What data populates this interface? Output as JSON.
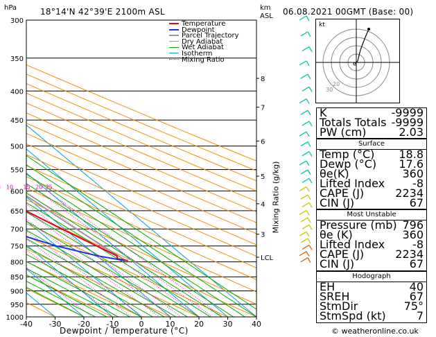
{
  "header": {
    "location": "18°14'N  42°39'E  2100m  ASL",
    "datetime": "06.08.2021  00GMT  (Base: 00)",
    "hpa_label": "hPa",
    "km_label": "km",
    "asl_label": "ASL"
  },
  "chart_data": {
    "type": "skew-t",
    "xlabel": "Dewpoint / Temperature (°C)",
    "ylabel_right": "Mixing Ratio (g/kg)",
    "x_ticks": [
      -40,
      -30,
      -20,
      -10,
      0,
      10,
      20,
      30,
      40
    ],
    "pressure_ticks": [
      300,
      350,
      400,
      450,
      500,
      550,
      600,
      650,
      700,
      750,
      800,
      850,
      900,
      950,
      1000
    ],
    "km_ticks": [
      {
        "label": "8",
        "p": 380
      },
      {
        "label": "7",
        "p": 427
      },
      {
        "label": "6",
        "p": 490
      },
      {
        "label": "5",
        "p": 565
      },
      {
        "label": "4",
        "p": 632
      },
      {
        "label": "3",
        "p": 715
      },
      {
        "label": "LCL",
        "p": 785
      }
    ],
    "mixing_ratio_labels": [
      "1",
      "2",
      "3",
      "4",
      "6",
      "8",
      "10",
      "15",
      "20",
      "25"
    ],
    "legend": [
      "Temperature",
      "Dewpoint",
      "Parcel Trajectory",
      "Dry Adiabat",
      "Wet Adiabat",
      "Isotherm",
      "Mixing Ratio"
    ],
    "colors": {
      "temperature": "#e8001c",
      "dewpoint": "#1a32f0",
      "parcel": "#999999",
      "dry_adiabat": "#f09000",
      "wet_adiabat": "#00b000",
      "isotherm": "#00a0e8",
      "mixing_ratio": "#e000c0"
    },
    "temperature": [
      {
        "p": 370,
        "t": -6
      },
      {
        "p": 380,
        "t": -8
      },
      {
        "p": 400,
        "t": -8
      },
      {
        "p": 450,
        "t": -12
      },
      {
        "p": 470,
        "t": -11
      },
      {
        "p": 500,
        "t": -10
      },
      {
        "p": 550,
        "t": -6
      },
      {
        "p": 600,
        "t": -2
      },
      {
        "p": 650,
        "t": 4
      },
      {
        "p": 700,
        "t": 9
      },
      {
        "p": 750,
        "t": 14
      },
      {
        "p": 780,
        "t": 17
      },
      {
        "p": 790,
        "t": 16
      },
      {
        "p": 796,
        "t": 18.8
      }
    ],
    "dewpoint": [
      {
        "p": 300,
        "t": -50
      },
      {
        "p": 340,
        "t": -38
      },
      {
        "p": 360,
        "t": -50
      },
      {
        "p": 370,
        "t": -39
      },
      {
        "p": 400,
        "t": -32
      },
      {
        "p": 445,
        "t": -24
      },
      {
        "p": 450,
        "t": -24
      },
      {
        "p": 465,
        "t": -17
      },
      {
        "p": 480,
        "t": -17
      },
      {
        "p": 500,
        "t": -20
      },
      {
        "p": 515,
        "t": -23
      },
      {
        "p": 550,
        "t": -19
      },
      {
        "p": 600,
        "t": -17
      },
      {
        "p": 650,
        "t": -15
      },
      {
        "p": 690,
        "t": -13
      },
      {
        "p": 700,
        "t": -12
      },
      {
        "p": 750,
        "t": 0
      },
      {
        "p": 780,
        "t": 10
      },
      {
        "p": 796,
        "t": 17.6
      }
    ],
    "parcel": [
      {
        "p": 300,
        "t": -14
      },
      {
        "p": 400,
        "t": -2
      },
      {
        "p": 500,
        "t": 5
      },
      {
        "p": 600,
        "t": 10
      },
      {
        "p": 700,
        "t": 14
      },
      {
        "p": 796,
        "t": 18
      }
    ]
  },
  "hodograph": {
    "label": "kt",
    "ring_labels": [
      "20",
      "30"
    ]
  },
  "indices": [
    {
      "k": "K",
      "v": "-9999"
    },
    {
      "k": "Totals Totals",
      "v": "-9999"
    },
    {
      "k": "PW (cm)",
      "v": "2.03"
    }
  ],
  "surface": {
    "title": "Surface",
    "rows": [
      {
        "k": "Temp (°C)",
        "v": "18.8"
      },
      {
        "k": "Dewp (°C)",
        "v": "17.6"
      },
      {
        "k": "θe(K)",
        "v": "360"
      },
      {
        "k": "Lifted Index",
        "v": "-8"
      },
      {
        "k": "CAPE (J)",
        "v": "2234"
      },
      {
        "k": "CIN (J)",
        "v": "67"
      }
    ]
  },
  "most_unstable": {
    "title": "Most Unstable",
    "rows": [
      {
        "k": "Pressure (mb)",
        "v": "796"
      },
      {
        "k": "θe (K)",
        "v": "360"
      },
      {
        "k": "Lifted Index",
        "v": "-8"
      },
      {
        "k": "CAPE (J)",
        "v": "2234"
      },
      {
        "k": "CIN (J)",
        "v": "67"
      }
    ]
  },
  "hodograph_table": {
    "title": "Hodograph",
    "rows": [
      {
        "k": "EH",
        "v": "40"
      },
      {
        "k": "SREH",
        "v": "67"
      },
      {
        "k": "StmDir",
        "v": "75°"
      },
      {
        "k": "StmSpd (kt)",
        "v": "7"
      }
    ]
  },
  "footer": {
    "copyright": "© weatheronline.co.uk"
  }
}
